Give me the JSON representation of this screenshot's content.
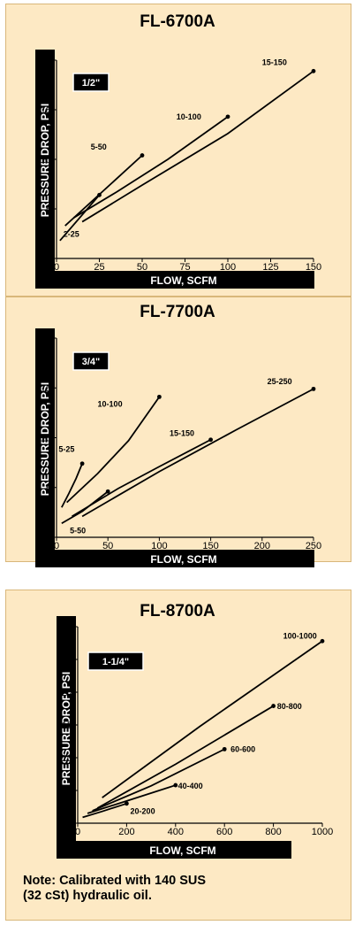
{
  "colors": {
    "panel_bg": "#fde9c4",
    "axis": "#000000",
    "axis_label_text": "#ffffff",
    "curve": "#000000"
  },
  "chart_data": [
    {
      "type": "line",
      "title": "FL-6700A",
      "badge": "1/2\"",
      "xlabel": "FLOW, SCFM",
      "ylabel": "PRESSURE DROP, PSI",
      "xlim": [
        0,
        150
      ],
      "ylim": [
        0,
        20
      ],
      "xticks": [
        0,
        25,
        50,
        75,
        100,
        125,
        150
      ],
      "yticks": [
        0,
        5,
        10,
        15,
        20
      ],
      "grid": false,
      "series": [
        {
          "name": "2-25",
          "x": [
            2,
            25
          ],
          "y": [
            1.8,
            6.4
          ],
          "label_at": [
            4,
            2.2
          ]
        },
        {
          "name": "5-50",
          "x": [
            5,
            50
          ],
          "y": [
            3.3,
            10.4
          ],
          "label_at": [
            20,
            11
          ]
        },
        {
          "name": "10-100",
          "x": [
            10,
            35,
            65,
            100
          ],
          "y": [
            4.1,
            6.7,
            10.0,
            14.3
          ],
          "label_at": [
            70,
            14
          ]
        },
        {
          "name": "15-150",
          "x": [
            15,
            50,
            100,
            150
          ],
          "y": [
            3.7,
            7.4,
            12.6,
            18.9
          ],
          "label_at": [
            120,
            19.5
          ]
        }
      ]
    },
    {
      "type": "line",
      "title": "FL-7700A",
      "badge": "3/4\"",
      "xlabel": "FLOW, SCFM",
      "ylabel": "PRESSURE DROP, PSI",
      "xlim": [
        0,
        250
      ],
      "ylim": [
        0,
        20
      ],
      "xticks": [
        0,
        50,
        100,
        150,
        200,
        250
      ],
      "yticks": [
        0,
        5,
        10,
        15,
        20
      ],
      "grid": false,
      "series": [
        {
          "name": "5-25",
          "x": [
            5,
            12,
            19,
            25
          ],
          "y": [
            3.0,
            4.4,
            5.9,
            7.4
          ],
          "label_at": [
            2,
            8.6
          ]
        },
        {
          "name": "10-100",
          "x": [
            10,
            40,
            70,
            100
          ],
          "y": [
            3.5,
            6.4,
            9.7,
            14.1
          ],
          "label_at": [
            40,
            13.1
          ]
        },
        {
          "name": "5-50",
          "x": [
            5,
            25,
            50
          ],
          "y": [
            1.4,
            2.6,
            4.6
          ],
          "label_at": [
            13,
            0.4
          ]
        },
        {
          "name": "15-150",
          "x": [
            15,
            60,
            100,
            150
          ],
          "y": [
            2.1,
            4.9,
            7.1,
            9.8
          ],
          "label_at": [
            110,
            10.2
          ]
        },
        {
          "name": "25-250",
          "x": [
            25,
            100,
            175,
            250
          ],
          "y": [
            2.1,
            6.6,
            10.8,
            14.9
          ],
          "label_at": [
            205,
            15.4
          ]
        }
      ]
    },
    {
      "type": "line",
      "title": "FL-8700A",
      "badge": "1-1/4\"",
      "xlabel": "FLOW, SCFM",
      "ylabel": "PRESSURE DROP, PSI",
      "xlim": [
        0,
        1000
      ],
      "ylim": [
        0,
        30
      ],
      "xticks": [
        0,
        200,
        400,
        600,
        800,
        1000
      ],
      "yticks": [
        0,
        5,
        10,
        15,
        20,
        25,
        30
      ],
      "grid": false,
      "series": [
        {
          "name": "20-200",
          "x": [
            20,
            100,
            200
          ],
          "y": [
            0.9,
            1.8,
            3.0
          ],
          "label_at": [
            215,
            1.4
          ]
        },
        {
          "name": "40-400",
          "x": [
            40,
            200,
            400
          ],
          "y": [
            1.5,
            3.4,
            5.8
          ],
          "label_at": [
            410,
            5.3
          ]
        },
        {
          "name": "60-600",
          "x": [
            60,
            300,
            600
          ],
          "y": [
            1.9,
            5.7,
            11.3
          ],
          "label_at": [
            625,
            10.9
          ]
        },
        {
          "name": "80-800",
          "x": [
            80,
            400,
            800
          ],
          "y": [
            2.3,
            9.0,
            17.9
          ],
          "label_at": [
            815,
            17.4
          ]
        },
        {
          "name": "100-1000",
          "x": [
            100,
            500,
            1000
          ],
          "y": [
            3.9,
            14.8,
            27.8
          ],
          "label_at": [
            840,
            28.2
          ]
        }
      ]
    }
  ],
  "note": {
    "line1": "Note: Calibrated with 140 SUS",
    "line2": "(32 cSt) hydraulic oil."
  }
}
